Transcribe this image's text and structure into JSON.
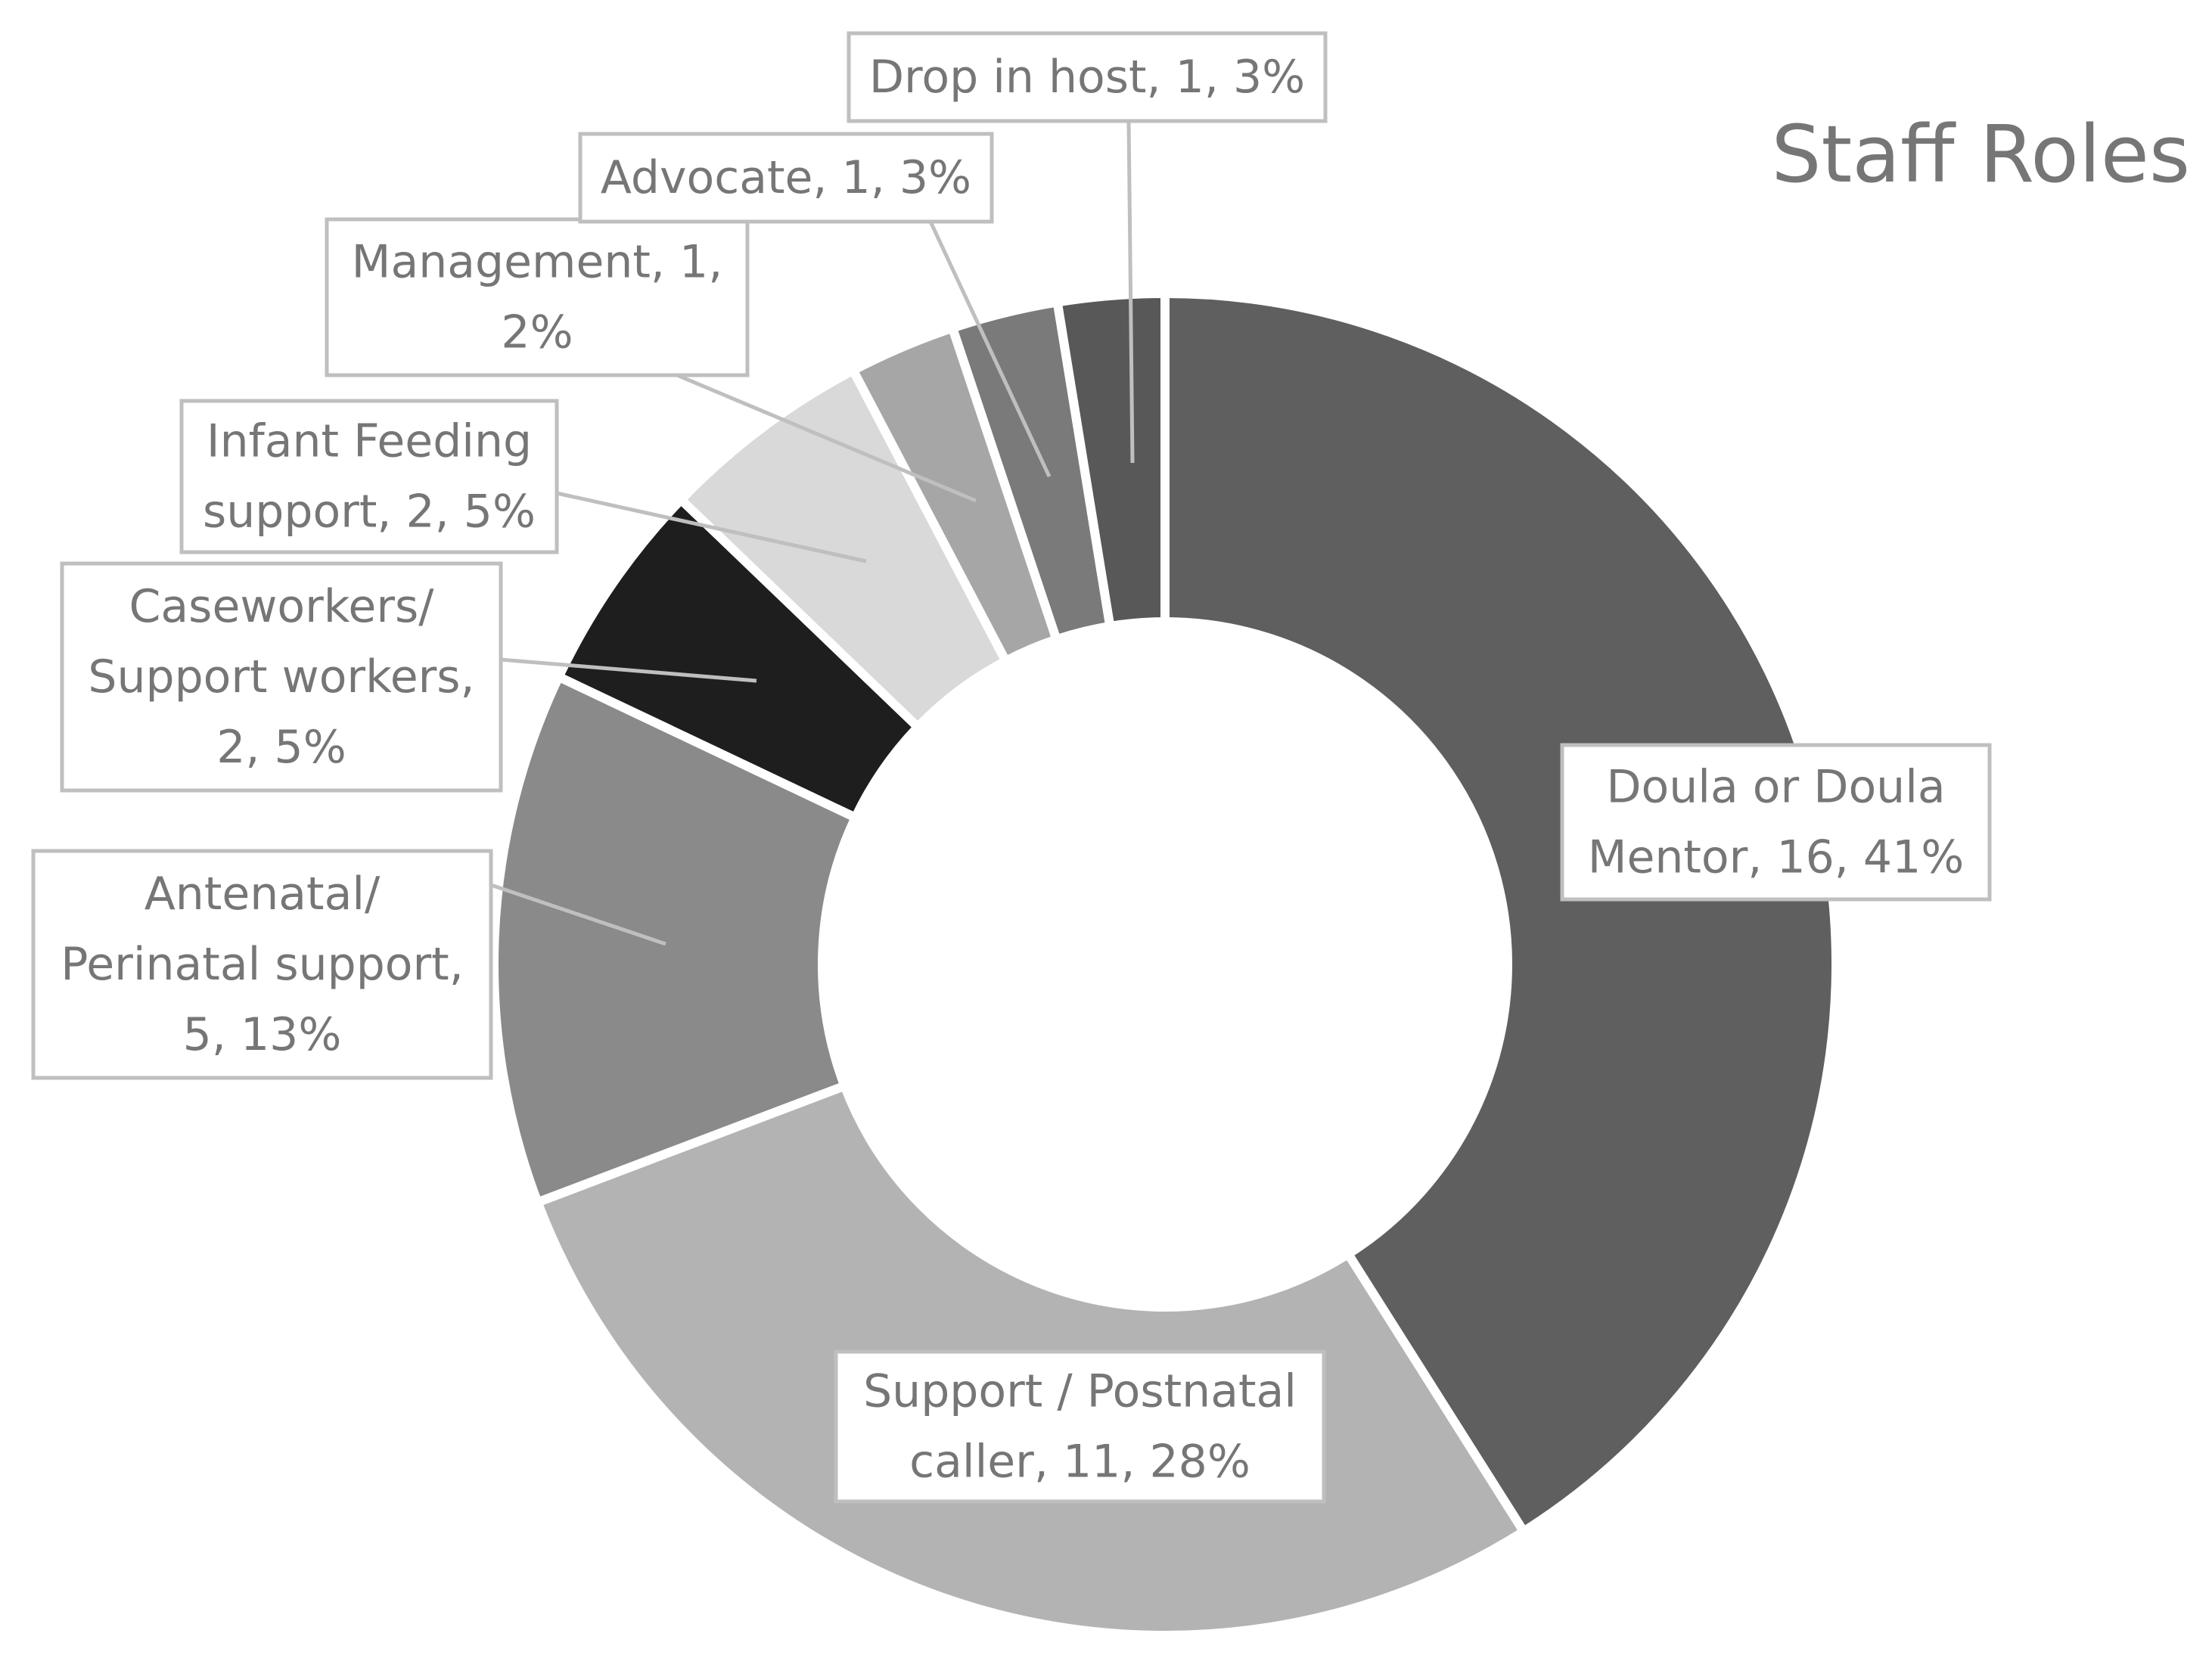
{
  "chart_data": {
    "type": "pie",
    "variant": "doughnut",
    "title": "Staff Roles",
    "slices": [
      {
        "label": "Doula or Doula Mentor",
        "value": 16,
        "percent": "41%",
        "color": "#5f5f5f",
        "label_lines": [
          "Doula or Doula",
          "Mentor, 16, 41%"
        ]
      },
      {
        "label": "Support / Postnatal caller",
        "value": 11,
        "percent": "28%",
        "color": "#b3b3b3",
        "label_lines": [
          "Support / Postnatal",
          "caller, 11, 28%"
        ]
      },
      {
        "label": "Antenatal/ Perinatal support",
        "value": 5,
        "percent": "13%",
        "color": "#8a8a8a",
        "label_lines": [
          "Antenatal/",
          "Perinatal support,",
          "5, 13%"
        ]
      },
      {
        "label": "Caseworkers/ Support workers",
        "value": 2,
        "percent": "5%",
        "color": "#1e1e1e",
        "label_lines": [
          "Caseworkers/",
          "Support workers,",
          "2, 5%"
        ]
      },
      {
        "label": "Infant Feeding support",
        "value": 2,
        "percent": "5%",
        "color": "#d9d9d9",
        "label_lines": [
          "Infant Feeding",
          "support, 2, 5%"
        ]
      },
      {
        "label": "Management",
        "value": 1,
        "percent": "2%",
        "color": "#a6a6a6",
        "label_lines": [
          "Management, 1,",
          "2%"
        ]
      },
      {
        "label": "Advocate",
        "value": 1,
        "percent": "3%",
        "color": "#7a7a7a",
        "label_lines": [
          "Advocate, 1, 3%"
        ]
      },
      {
        "label": "Drop in host",
        "value": 1,
        "percent": "3%",
        "color": "#585858",
        "label_lines": [
          "Drop in host, 1, 3%"
        ]
      }
    ],
    "legend": "none"
  }
}
